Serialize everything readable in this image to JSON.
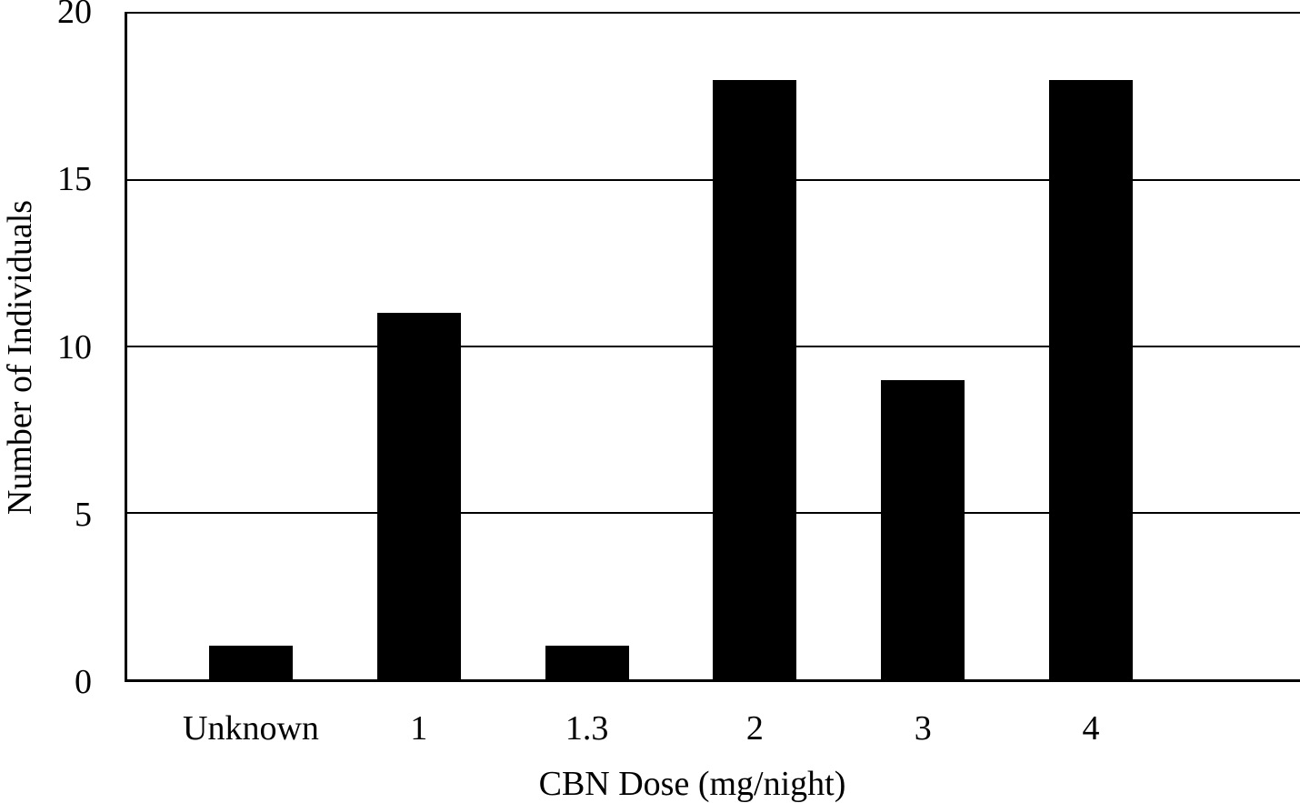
{
  "chart_data": {
    "type": "bar",
    "categories": [
      "Unknown",
      "1",
      "1.3",
      "2",
      "3",
      "4"
    ],
    "values": [
      1,
      11,
      1,
      18,
      9,
      18
    ],
    "title": "",
    "xlabel": "CBN Dose (mg/night)",
    "ylabel": "Number of Individuals",
    "ylim": [
      0,
      20
    ],
    "yticks": [
      0,
      5,
      10,
      15,
      20
    ],
    "grid": true,
    "legend_position": "none",
    "bar_color": "#000000",
    "axis_color": "#000000",
    "gridline_color": "#000000",
    "background_color": "#ffffff"
  }
}
